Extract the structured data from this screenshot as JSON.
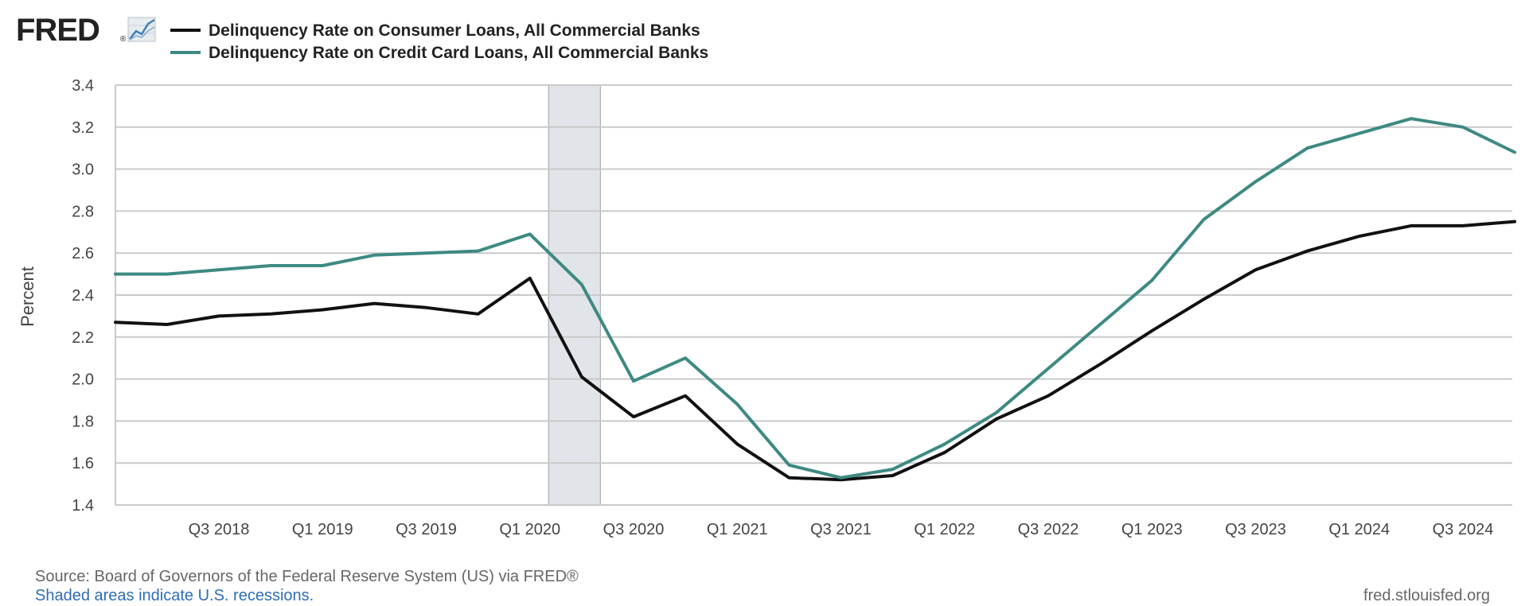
{
  "logo": {
    "text": "FRED",
    "registered": "®"
  },
  "footer": {
    "source": "Source: Board of Governors of the Federal Reserve System (US) via FRED®",
    "recession_note": "Shaded areas indicate U.S. recessions.",
    "site": "fred.stlouisfed.org"
  },
  "colors": {
    "consumer": "#111111",
    "credit_card": "#3d8a82",
    "recession": "#e1e4e8",
    "grid": "#c9c9c9"
  },
  "chart_data": {
    "type": "line",
    "ylabel": "Percent",
    "xlabel": "",
    "ylim": [
      1.4,
      3.4
    ],
    "yticks": [
      "1.4",
      "1.6",
      "1.8",
      "2.0",
      "2.2",
      "2.4",
      "2.6",
      "2.8",
      "3.0",
      "3.2",
      "3.4"
    ],
    "xticks": [
      "Q3 2018",
      "Q1 2019",
      "Q3 2019",
      "Q1 2020",
      "Q3 2020",
      "Q1 2021",
      "Q3 2021",
      "Q1 2022",
      "Q3 2022",
      "Q1 2023",
      "Q3 2023",
      "Q1 2024",
      "Q3 2024"
    ],
    "x": [
      "Q1 2018",
      "Q2 2018",
      "Q3 2018",
      "Q4 2018",
      "Q1 2019",
      "Q2 2019",
      "Q3 2019",
      "Q4 2019",
      "Q1 2020",
      "Q2 2020",
      "Q3 2020",
      "Q4 2020",
      "Q1 2021",
      "Q2 2021",
      "Q3 2021",
      "Q4 2021",
      "Q1 2022",
      "Q2 2022",
      "Q3 2022",
      "Q4 2022",
      "Q1 2023",
      "Q2 2023",
      "Q3 2023",
      "Q4 2023",
      "Q1 2024",
      "Q2 2024",
      "Q3 2024",
      "Q4 2024"
    ],
    "series": [
      {
        "name": "Delinquency Rate on Consumer Loans, All Commercial Banks",
        "values": [
          2.27,
          2.26,
          2.3,
          2.31,
          2.33,
          2.36,
          2.34,
          2.31,
          2.48,
          2.01,
          1.82,
          1.92,
          1.69,
          1.53,
          1.52,
          1.54,
          1.65,
          1.81,
          1.92,
          2.07,
          2.23,
          2.38,
          2.52,
          2.61,
          2.68,
          2.73,
          2.73,
          2.75
        ]
      },
      {
        "name": "Delinquency Rate on Credit Card Loans, All Commercial Banks",
        "values": [
          2.5,
          2.5,
          2.52,
          2.54,
          2.54,
          2.59,
          2.6,
          2.61,
          2.69,
          2.45,
          1.99,
          2.1,
          1.88,
          1.59,
          1.53,
          1.57,
          1.69,
          1.84,
          2.05,
          2.26,
          2.47,
          2.76,
          2.94,
          3.1,
          3.17,
          3.24,
          3.2,
          3.08
        ]
      }
    ],
    "recessions": [
      {
        "start": "Q1 2020",
        "end": "Q2 2020"
      }
    ],
    "grid": true,
    "legend_position": "top-left"
  }
}
